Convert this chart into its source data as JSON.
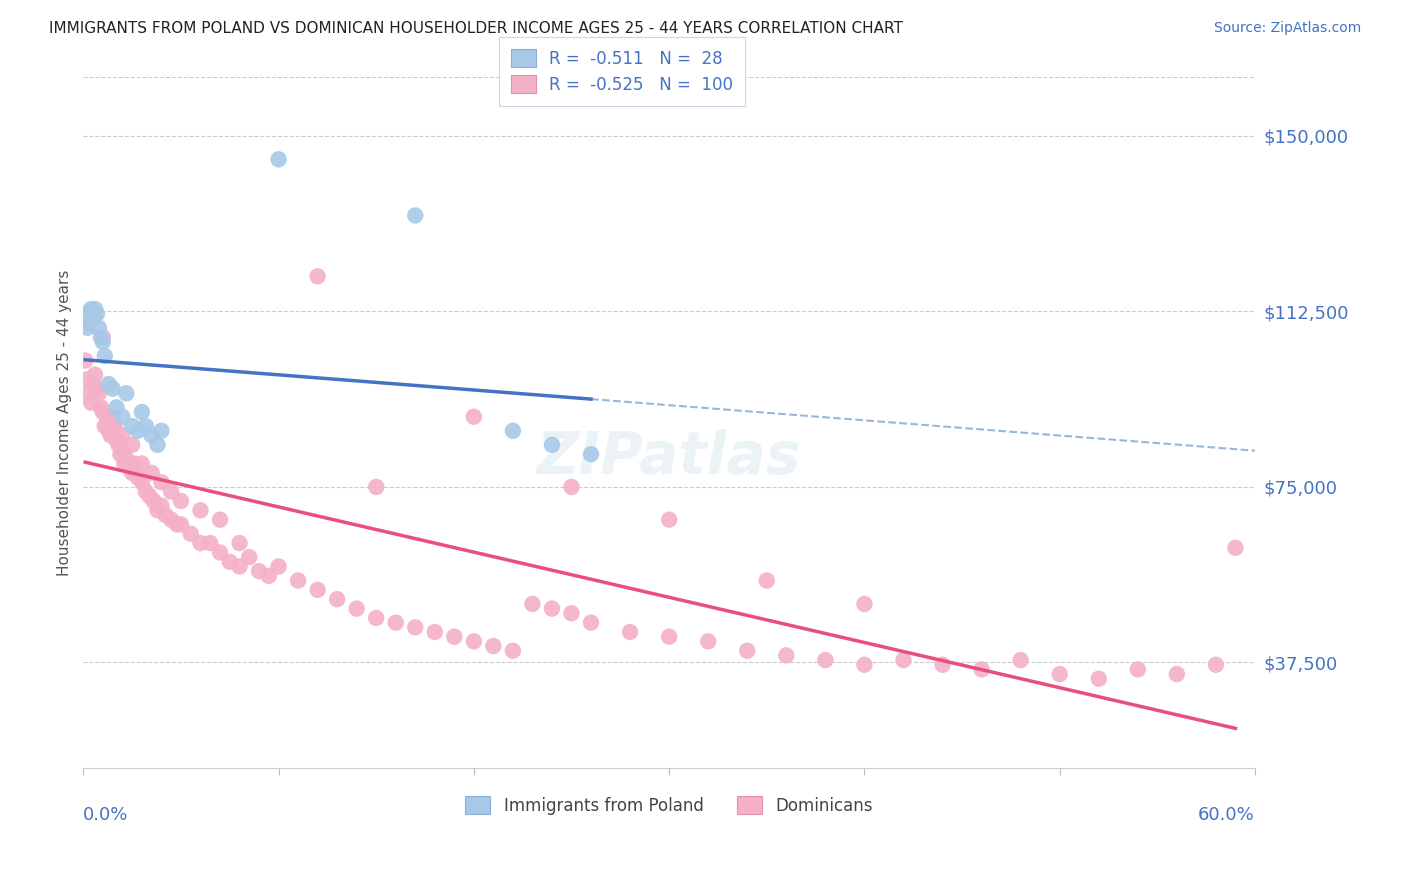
{
  "title": "IMMIGRANTS FROM POLAND VS DOMINICAN HOUSEHOLDER INCOME AGES 25 - 44 YEARS CORRELATION CHART",
  "source": "Source: ZipAtlas.com",
  "ylabel": "Householder Income Ages 25 - 44 years",
  "ytick_labels": [
    "$37,500",
    "$75,000",
    "$112,500",
    "$150,000"
  ],
  "ytick_values": [
    37500,
    75000,
    112500,
    150000
  ],
  "ymax": 162500,
  "ymin": 15000,
  "xmin": 0.0,
  "xmax": 0.6,
  "legend_label1": "Immigrants from Poland",
  "legend_label2": "Dominicans",
  "r1": "-0.511",
  "n1": "28",
  "r2": "-0.525",
  "n2": "100",
  "color_poland_fill": "#a8c8e8",
  "color_dominican_fill": "#f4b0c8",
  "color_trend_poland": "#4472c4",
  "color_trend_dominican": "#e8507a",
  "color_dashed": "#88aacc",
  "color_blue": "#4472c4",
  "color_title": "#222222",
  "poland_x": [
    0.001,
    0.002,
    0.003,
    0.004,
    0.005,
    0.006,
    0.007,
    0.008,
    0.009,
    0.01,
    0.011,
    0.013,
    0.015,
    0.017,
    0.02,
    0.022,
    0.025,
    0.028,
    0.03,
    0.032,
    0.035,
    0.038,
    0.04,
    0.1,
    0.17,
    0.22,
    0.24,
    0.26
  ],
  "poland_y": [
    112000,
    109000,
    110000,
    113000,
    111000,
    113000,
    112000,
    109000,
    107000,
    106000,
    103000,
    97000,
    96000,
    92000,
    90000,
    95000,
    88000,
    87000,
    91000,
    88000,
    86000,
    84000,
    87000,
    145000,
    133000,
    87000,
    84000,
    82000
  ],
  "dominican_x": [
    0.001,
    0.002,
    0.003,
    0.004,
    0.005,
    0.006,
    0.007,
    0.008,
    0.009,
    0.01,
    0.011,
    0.012,
    0.013,
    0.014,
    0.015,
    0.016,
    0.017,
    0.018,
    0.019,
    0.02,
    0.021,
    0.022,
    0.023,
    0.024,
    0.025,
    0.026,
    0.027,
    0.028,
    0.03,
    0.032,
    0.034,
    0.036,
    0.038,
    0.04,
    0.042,
    0.045,
    0.048,
    0.05,
    0.055,
    0.06,
    0.065,
    0.07,
    0.075,
    0.08,
    0.085,
    0.09,
    0.095,
    0.1,
    0.11,
    0.12,
    0.13,
    0.14,
    0.15,
    0.16,
    0.17,
    0.18,
    0.19,
    0.2,
    0.21,
    0.22,
    0.23,
    0.24,
    0.25,
    0.26,
    0.28,
    0.3,
    0.32,
    0.34,
    0.36,
    0.38,
    0.4,
    0.42,
    0.44,
    0.46,
    0.48,
    0.5,
    0.52,
    0.54,
    0.56,
    0.58,
    0.01,
    0.015,
    0.02,
    0.025,
    0.03,
    0.035,
    0.04,
    0.045,
    0.05,
    0.06,
    0.07,
    0.08,
    0.12,
    0.15,
    0.2,
    0.25,
    0.3,
    0.35,
    0.4,
    0.59
  ],
  "dominican_y": [
    102000,
    98000,
    95000,
    93000,
    97000,
    99000,
    96000,
    95000,
    92000,
    91000,
    88000,
    90000,
    87000,
    86000,
    89000,
    88000,
    85000,
    84000,
    82000,
    83000,
    80000,
    81000,
    80000,
    79000,
    78000,
    80000,
    78000,
    77000,
    76000,
    74000,
    73000,
    72000,
    70000,
    71000,
    69000,
    68000,
    67000,
    67000,
    65000,
    63000,
    63000,
    61000,
    59000,
    58000,
    60000,
    57000,
    56000,
    58000,
    55000,
    53000,
    51000,
    49000,
    47000,
    46000,
    45000,
    44000,
    43000,
    42000,
    41000,
    40000,
    50000,
    49000,
    48000,
    46000,
    44000,
    43000,
    42000,
    40000,
    39000,
    38000,
    37000,
    38000,
    37000,
    36000,
    38000,
    35000,
    34000,
    36000,
    35000,
    37000,
    107000,
    90000,
    86000,
    84000,
    80000,
    78000,
    76000,
    74000,
    72000,
    70000,
    68000,
    63000,
    120000,
    75000,
    90000,
    75000,
    68000,
    55000,
    50000,
    62000
  ]
}
